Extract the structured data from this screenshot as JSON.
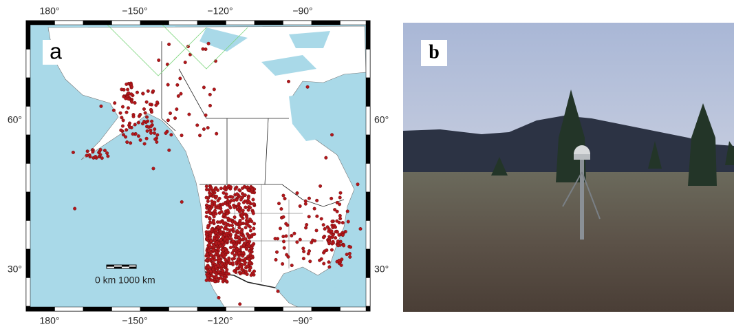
{
  "panel_a": {
    "label": "a",
    "top_axis": [
      "180°",
      "−150°",
      "−120°",
      "−90°"
    ],
    "bottom_axis": [
      "180°",
      "−150°",
      "−120°",
      "−90°"
    ],
    "left_axis": [
      "60°",
      "30°"
    ],
    "right_axis": [
      "60°",
      "30°"
    ],
    "scale_bar": [
      "0 km",
      "1000 km"
    ]
  },
  "panel_b": {
    "label": "b"
  }
}
